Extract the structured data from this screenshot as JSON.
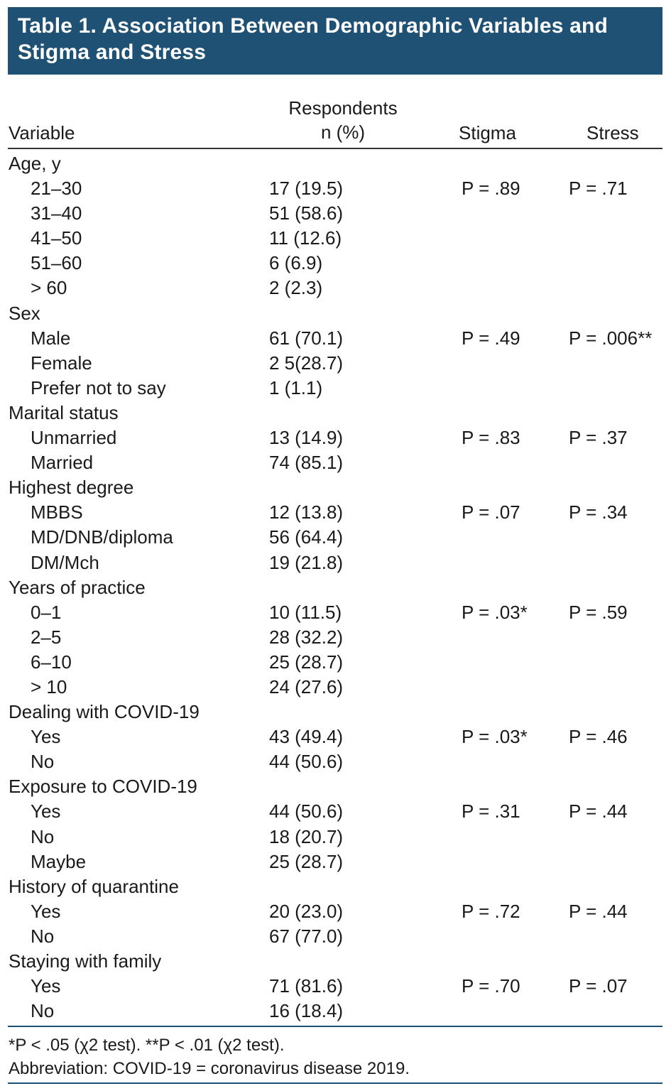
{
  "title": "Table 1. Association Between Demographic Variables and Stigma and Stress",
  "headers": {
    "variable": "Variable",
    "respondents_line1": "Respondents",
    "respondents_line2": "n (%)",
    "stigma": "Stigma",
    "stress": "Stress"
  },
  "rows": [
    {
      "type": "group",
      "variable": "Age, y",
      "respondents": "",
      "stigma": "",
      "stress": ""
    },
    {
      "type": "sub",
      "variable": "21–30",
      "respondents": "17 (19.5)",
      "stigma": "P = .89",
      "stress": "P = .71"
    },
    {
      "type": "sub",
      "variable": "31–40",
      "respondents": "51 (58.6)",
      "stigma": "",
      "stress": ""
    },
    {
      "type": "sub",
      "variable": "41–50",
      "respondents": "11 (12.6)",
      "stigma": "",
      "stress": ""
    },
    {
      "type": "sub",
      "variable": "51–60",
      "respondents": "6 (6.9)",
      "stigma": "",
      "stress": ""
    },
    {
      "type": "sub",
      "variable": "> 60",
      "respondents": "2 (2.3)",
      "stigma": "",
      "stress": ""
    },
    {
      "type": "group",
      "variable": "Sex",
      "respondents": "",
      "stigma": "",
      "stress": ""
    },
    {
      "type": "sub",
      "variable": "Male",
      "respondents": "61 (70.1)",
      "stigma": "P = .49",
      "stress": "P = .006**"
    },
    {
      "type": "sub",
      "variable": "Female",
      "respondents": "2 5(28.7)",
      "stigma": "",
      "stress": ""
    },
    {
      "type": "sub",
      "variable": "Prefer not to say",
      "respondents": "1 (1.1)",
      "stigma": "",
      "stress": ""
    },
    {
      "type": "group",
      "variable": "Marital status",
      "respondents": "",
      "stigma": "",
      "stress": ""
    },
    {
      "type": "sub",
      "variable": "Unmarried",
      "respondents": "13 (14.9)",
      "stigma": "P = .83",
      "stress": "P = .37"
    },
    {
      "type": "sub",
      "variable": "Married",
      "respondents": "74 (85.1)",
      "stigma": "",
      "stress": ""
    },
    {
      "type": "group",
      "variable": "Highest degree",
      "respondents": "",
      "stigma": "",
      "stress": ""
    },
    {
      "type": "sub",
      "variable": "MBBS",
      "respondents": "12 (13.8)",
      "stigma": "P = .07",
      "stress": "P = .34"
    },
    {
      "type": "sub",
      "variable": "MD/DNB/diploma",
      "respondents": "56 (64.4)",
      "stigma": "",
      "stress": ""
    },
    {
      "type": "sub",
      "variable": "DM/Mch",
      "respondents": "19 (21.8)",
      "stigma": "",
      "stress": ""
    },
    {
      "type": "group",
      "variable": "Years of practice",
      "respondents": "",
      "stigma": "",
      "stress": ""
    },
    {
      "type": "sub",
      "variable": "0–1",
      "respondents": "10 (11.5)",
      "stigma": "P = .03*",
      "stress": "P = .59"
    },
    {
      "type": "sub",
      "variable": "2–5",
      "respondents": "28 (32.2)",
      "stigma": "",
      "stress": ""
    },
    {
      "type": "sub",
      "variable": "6–10",
      "respondents": "25 (28.7)",
      "stigma": "",
      "stress": ""
    },
    {
      "type": "sub",
      "variable": "> 10",
      "respondents": "24 (27.6)",
      "stigma": "",
      "stress": ""
    },
    {
      "type": "group",
      "variable": "Dealing with COVID-19",
      "respondents": "",
      "stigma": "",
      "stress": ""
    },
    {
      "type": "sub",
      "variable": "Yes",
      "respondents": "43 (49.4)",
      "stigma": "P = .03*",
      "stress": "P = .46"
    },
    {
      "type": "sub",
      "variable": "No",
      "respondents": "44 (50.6)",
      "stigma": "",
      "stress": ""
    },
    {
      "type": "group",
      "variable": "Exposure to COVID-19",
      "respondents": "",
      "stigma": "",
      "stress": ""
    },
    {
      "type": "sub",
      "variable": "Yes",
      "respondents": "44 (50.6)",
      "stigma": "P = .31",
      "stress": "P = .44"
    },
    {
      "type": "sub",
      "variable": "No",
      "respondents": "18 (20.7)",
      "stigma": "",
      "stress": ""
    },
    {
      "type": "sub",
      "variable": "Maybe",
      "respondents": "25 (28.7)",
      "stigma": "",
      "stress": ""
    },
    {
      "type": "group",
      "variable": "History of quarantine",
      "respondents": "",
      "stigma": "",
      "stress": ""
    },
    {
      "type": "sub",
      "variable": "Yes",
      "respondents": "20 (23.0)",
      "stigma": "P = .72",
      "stress": "P = .44"
    },
    {
      "type": "sub",
      "variable": "No",
      "respondents": "67 (77.0)",
      "stigma": "",
      "stress": ""
    },
    {
      "type": "group",
      "variable": "Staying with family",
      "respondents": "",
      "stigma": "",
      "stress": ""
    },
    {
      "type": "sub",
      "variable": "Yes",
      "respondents": "71 (81.6)",
      "stigma": "P = .70",
      "stress": "P = .07"
    },
    {
      "type": "sub",
      "variable": "No",
      "respondents": "16 (18.4)",
      "stigma": "",
      "stress": ""
    }
  ],
  "footnotes": {
    "significance": "*P < .05 (χ2 test). **P < .01 (χ2 test).",
    "abbreviation": "Abbreviation: COVID-19 = coronavirus disease 2019."
  },
  "colors": {
    "title_background": "#1f5175",
    "title_text": "#ffffff",
    "rule": "#1f5175"
  }
}
